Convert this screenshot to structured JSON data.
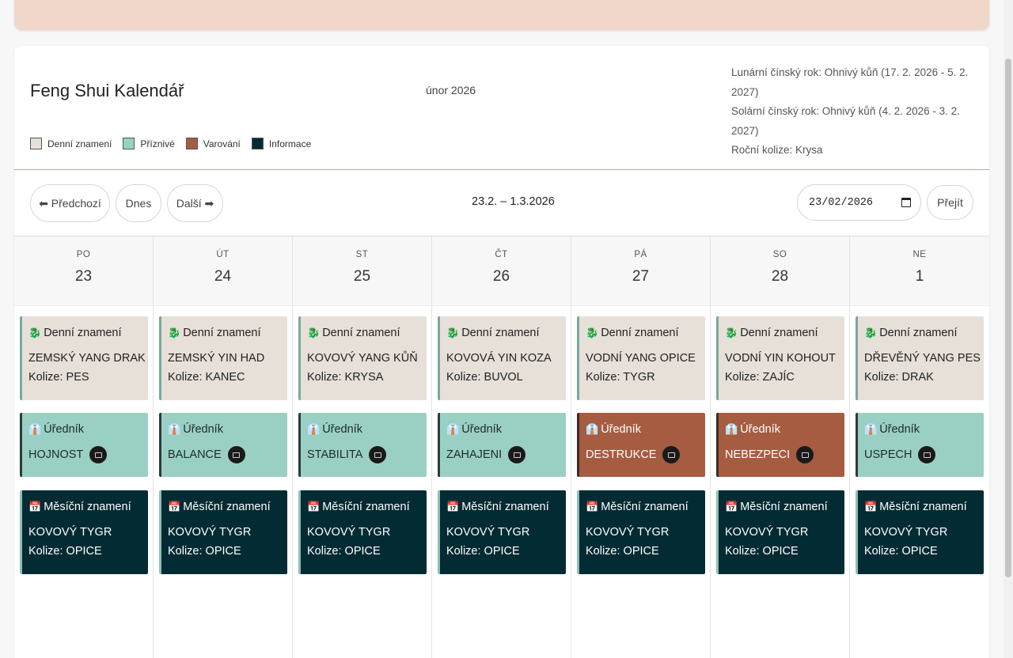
{
  "app": {
    "title": "Feng Shui Kalendář",
    "month": "únor 2026",
    "year_info": [
      "Lunární čínský rok: Ohnivý kůň (17. 2. 2026 - 5. 2. 2027)",
      "Solární čínský rok: Ohnivý kůň (4. 2. 2026 - 3. 2. 2027)",
      "Roční kolize: Krysa"
    ]
  },
  "legend": [
    {
      "label": "Denní znamení",
      "color": "#e6e0d8"
    },
    {
      "label": "Příznivé",
      "color": "#9ad0c4"
    },
    {
      "label": "Varování",
      "color": "#a65c40"
    },
    {
      "label": "Informace",
      "color": "#032b33"
    }
  ],
  "nav": {
    "prev_label": "⬅ Předchozí",
    "today_label": "Dnes",
    "next_label": "Další ➡",
    "range": "23.2. – 1.3.2026",
    "date_value": "23/02/2026",
    "go_label": "Přejít"
  },
  "event_titles": {
    "day": "Denní znamení",
    "official": "Úředník",
    "month": "Měsíční znamení"
  },
  "icons": {
    "day": "dragon-icon",
    "official": "officer-icon",
    "month": "calendar-icon",
    "badge": "clapper-icon"
  },
  "days": [
    {
      "dow": "PO",
      "num": "23",
      "sign": "ZEMSKÝ YANG DRAK",
      "collision": "Kolize: PES",
      "official": "HOJNOST",
      "official_status": "good",
      "month_sign": "KOVOVÝ TYGR",
      "month_collision": "Kolize: OPICE"
    },
    {
      "dow": "ÚT",
      "num": "24",
      "sign": "ZEMSKÝ YIN HAD",
      "collision": "Kolize: KANEC",
      "official": "BALANCE",
      "official_status": "good",
      "month_sign": "KOVOVÝ TYGR",
      "month_collision": "Kolize: OPICE"
    },
    {
      "dow": "ST",
      "num": "25",
      "sign": "KOVOVÝ YANG KŮŇ",
      "collision": "Kolize: KRYSA",
      "official": "STABILITA",
      "official_status": "good",
      "month_sign": "KOVOVÝ TYGR",
      "month_collision": "Kolize: OPICE"
    },
    {
      "dow": "ČT",
      "num": "26",
      "sign": "KOVOVÁ YIN KOZA",
      "collision": "Kolize: BUVOL",
      "official": "ZAHAJENI",
      "official_status": "good",
      "month_sign": "KOVOVÝ TYGR",
      "month_collision": "Kolize: OPICE"
    },
    {
      "dow": "PÁ",
      "num": "27",
      "sign": "VODNÍ YANG OPICE",
      "collision": "Kolize: TYGR",
      "official": "DESTRUKCE",
      "official_status": "bad",
      "month_sign": "KOVOVÝ TYGR",
      "month_collision": "Kolize: OPICE"
    },
    {
      "dow": "SO",
      "num": "28",
      "sign": "VODNÍ YIN KOHOUT",
      "collision": "Kolize: ZAJÍC",
      "official": "NEBEZPECI",
      "official_status": "bad",
      "month_sign": "KOVOVÝ TYGR",
      "month_collision": "Kolize: OPICE"
    },
    {
      "dow": "NE",
      "num": "1",
      "sign": "DŘEVĚNÝ YANG PES",
      "collision": "Kolize: DRAK",
      "official": "USPECH",
      "official_status": "good",
      "month_sign": "KOVOVÝ TYGR",
      "month_collision": "Kolize: OPICE"
    }
  ]
}
